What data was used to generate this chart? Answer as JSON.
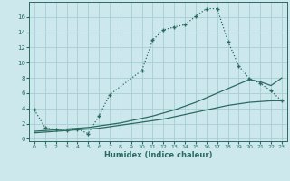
{
  "xlabel": "Humidex (Indice chaleur)",
  "bg_color": "#cce8ed",
  "grid_color": "#a8cdd5",
  "line_color": "#2a6b60",
  "xlim": [
    -0.5,
    23.5
  ],
  "ylim": [
    -0.3,
    18.0
  ],
  "xticks": [
    0,
    1,
    2,
    3,
    4,
    5,
    6,
    7,
    8,
    9,
    10,
    11,
    12,
    13,
    14,
    15,
    16,
    17,
    18,
    19,
    20,
    21,
    22,
    23
  ],
  "yticks": [
    0,
    2,
    4,
    6,
    8,
    10,
    12,
    14,
    16
  ],
  "curve1_x": [
    0,
    1,
    2,
    3,
    4,
    5,
    6,
    7,
    10,
    11,
    12,
    13,
    14,
    15,
    16,
    17,
    18,
    19,
    20,
    21,
    22,
    23
  ],
  "curve1_y": [
    3.8,
    1.5,
    1.2,
    1.1,
    1.3,
    0.7,
    3.0,
    5.8,
    9.0,
    13.0,
    14.3,
    14.7,
    15.0,
    16.1,
    17.1,
    17.1,
    12.8,
    9.6,
    7.9,
    7.3,
    6.3,
    5.0
  ],
  "curve2_x": [
    0,
    1,
    2,
    3,
    4,
    5,
    6,
    7,
    8,
    9,
    10,
    11,
    12,
    13,
    14,
    15,
    16,
    17,
    18,
    19,
    20,
    21,
    22,
    23
  ],
  "curve2_y": [
    1.0,
    1.1,
    1.2,
    1.3,
    1.4,
    1.5,
    1.7,
    1.9,
    2.1,
    2.4,
    2.7,
    3.0,
    3.4,
    3.8,
    4.3,
    4.8,
    5.4,
    6.0,
    6.6,
    7.2,
    7.8,
    7.5,
    7.0,
    8.0
  ],
  "curve3_x": [
    0,
    1,
    2,
    3,
    4,
    5,
    6,
    7,
    8,
    9,
    10,
    11,
    12,
    13,
    14,
    15,
    16,
    17,
    18,
    19,
    20,
    21,
    22,
    23
  ],
  "curve3_y": [
    0.8,
    0.9,
    1.0,
    1.1,
    1.2,
    1.3,
    1.4,
    1.6,
    1.8,
    2.0,
    2.2,
    2.4,
    2.6,
    2.9,
    3.2,
    3.5,
    3.8,
    4.1,
    4.4,
    4.6,
    4.8,
    4.9,
    5.0,
    5.0
  ]
}
